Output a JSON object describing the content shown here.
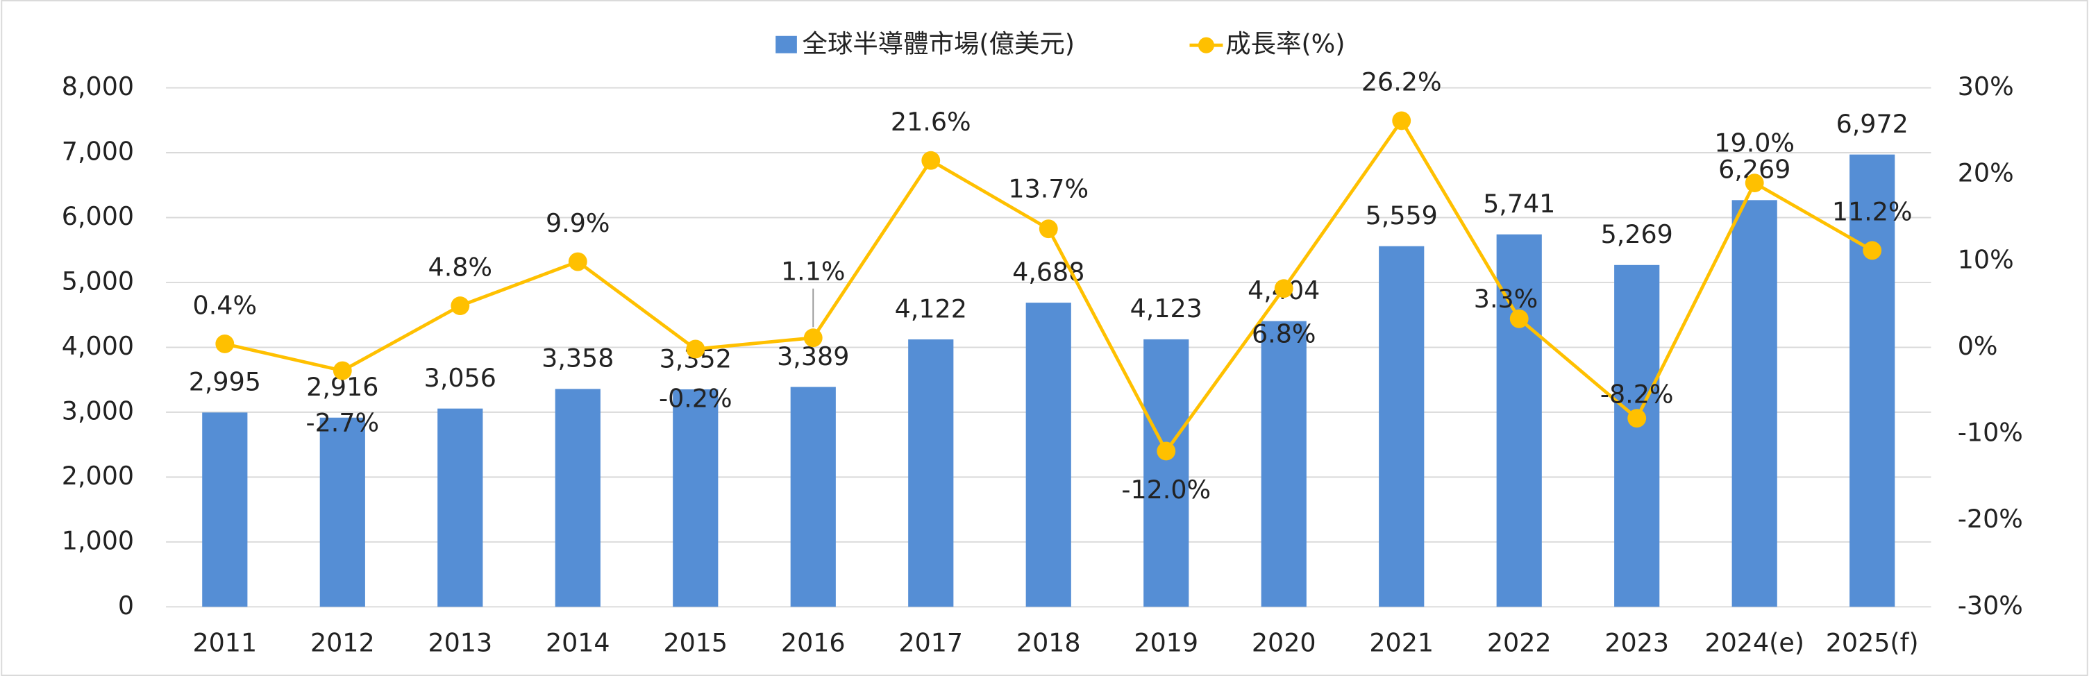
{
  "chart_data": {
    "type": "bar-line",
    "categories": [
      "2011",
      "2012",
      "2013",
      "2014",
      "2015",
      "2016",
      "2017",
      "2018",
      "2019",
      "2020",
      "2021",
      "2022",
      "2023",
      "2024(e)",
      "2025(f)"
    ],
    "series": [
      {
        "name": "全球半導體市場(億美元)",
        "type": "bar",
        "color": "#558ed5",
        "values": [
          2995,
          2916,
          3056,
          3358,
          3352,
          3389,
          4122,
          4688,
          4123,
          4404,
          5559,
          5741,
          5269,
          6269,
          6972
        ],
        "value_labels": [
          "2,995",
          "2,916",
          "3,056",
          "3,358",
          "3,352",
          "3,389",
          "4,122",
          "4,688",
          "4,123",
          "4,404",
          "5,559",
          "5,741",
          "5,269",
          "6,269",
          "6,972"
        ]
      },
      {
        "name": "成長率(%)",
        "type": "line",
        "axis": "y2",
        "color": "#ffc000",
        "values": [
          0.4,
          -2.7,
          4.8,
          9.9,
          -0.2,
          1.1,
          21.6,
          13.7,
          -12.0,
          6.8,
          26.2,
          3.3,
          -8.2,
          19.0,
          11.2
        ],
        "value_labels": [
          "0.4%",
          "-2.7%",
          "4.8%",
          "9.9%",
          "-0.2%",
          "1.1%",
          "21.6%",
          "13.7%",
          "-12.0%",
          "6.8%",
          "26.2%",
          "3.3%",
          "-8.2%",
          "19.0%",
          "11.2%"
        ]
      }
    ],
    "ylim": [
      0,
      8000
    ],
    "yticks": [
      0,
      {
        "value": 1000,
        "label": "1,000"
      },
      {
        "value": 2000,
        "label": "2,000"
      },
      {
        "value": 3000,
        "label": "3,000"
      },
      {
        "value": 4000,
        "label": "4,000"
      },
      {
        "value": 5000,
        "label": "5,000"
      },
      {
        "value": 6000,
        "label": "6,000"
      },
      {
        "value": 7000,
        "label": "7,000"
      },
      {
        "value": 8000,
        "label": "8,000"
      }
    ],
    "y2lim": [
      -30,
      30
    ],
    "y2ticks": [
      {
        "value": -30,
        "label": "-30%"
      },
      {
        "value": -20,
        "label": "-20%"
      },
      {
        "value": -10,
        "label": "-10%"
      },
      {
        "value": 0,
        "label": "0%"
      },
      {
        "value": 10,
        "label": "10%"
      },
      {
        "value": 20,
        "label": "20%"
      },
      {
        "value": 30,
        "label": "30%"
      }
    ],
    "grid": true,
    "legend": "top"
  }
}
